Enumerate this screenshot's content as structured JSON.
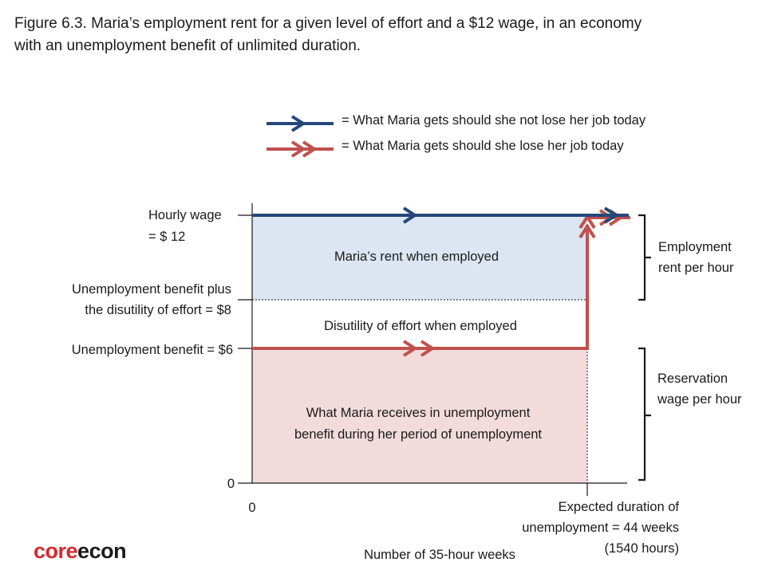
{
  "title": {
    "line1": "Figure 6.3. Maria’s employment rent for a given level of effort and a $12 wage, in an economy",
    "line2": "with an unemployment benefit of unlimited duration."
  },
  "legend": {
    "employed": "= What Maria gets should she not lose her job today",
    "unemployed": "= What Maria gets should she lose her job today"
  },
  "y_labels": {
    "wage_line1": "Hourly wage",
    "wage_line2": "= $ 12",
    "benefit_effort_line1": "Unemployment benefit plus",
    "benefit_effort_line2": "the disutility of effort = $8",
    "benefit": "Unemployment benefit = $6",
    "zero": "0"
  },
  "x_labels": {
    "zero": "0",
    "duration_line1": "Expected duration of",
    "duration_line2": "unemployment = 44 weeks",
    "duration_line3": "(1540 hours)",
    "axis_title": "Number of 35-hour weeks"
  },
  "regions": {
    "rent": "Maria’s rent when employed",
    "disutility": "Disutility of effort when employed",
    "benefit_line1": "What Maria receives in unemployment",
    "benefit_line2": "benefit during her period of unemployment"
  },
  "braces": {
    "rent_line1": "Employment",
    "rent_line2": "rent per hour",
    "reservation_line1": "Reservation",
    "reservation_line2": "wage per hour"
  },
  "logo": {
    "part1": "core",
    "part2": "econ"
  },
  "colors": {
    "employed_line": "#25477a",
    "unemployed_line": "#c0504d",
    "rent_fill": "#dce6f2",
    "benefit_fill": "#f2dcdb"
  }
}
